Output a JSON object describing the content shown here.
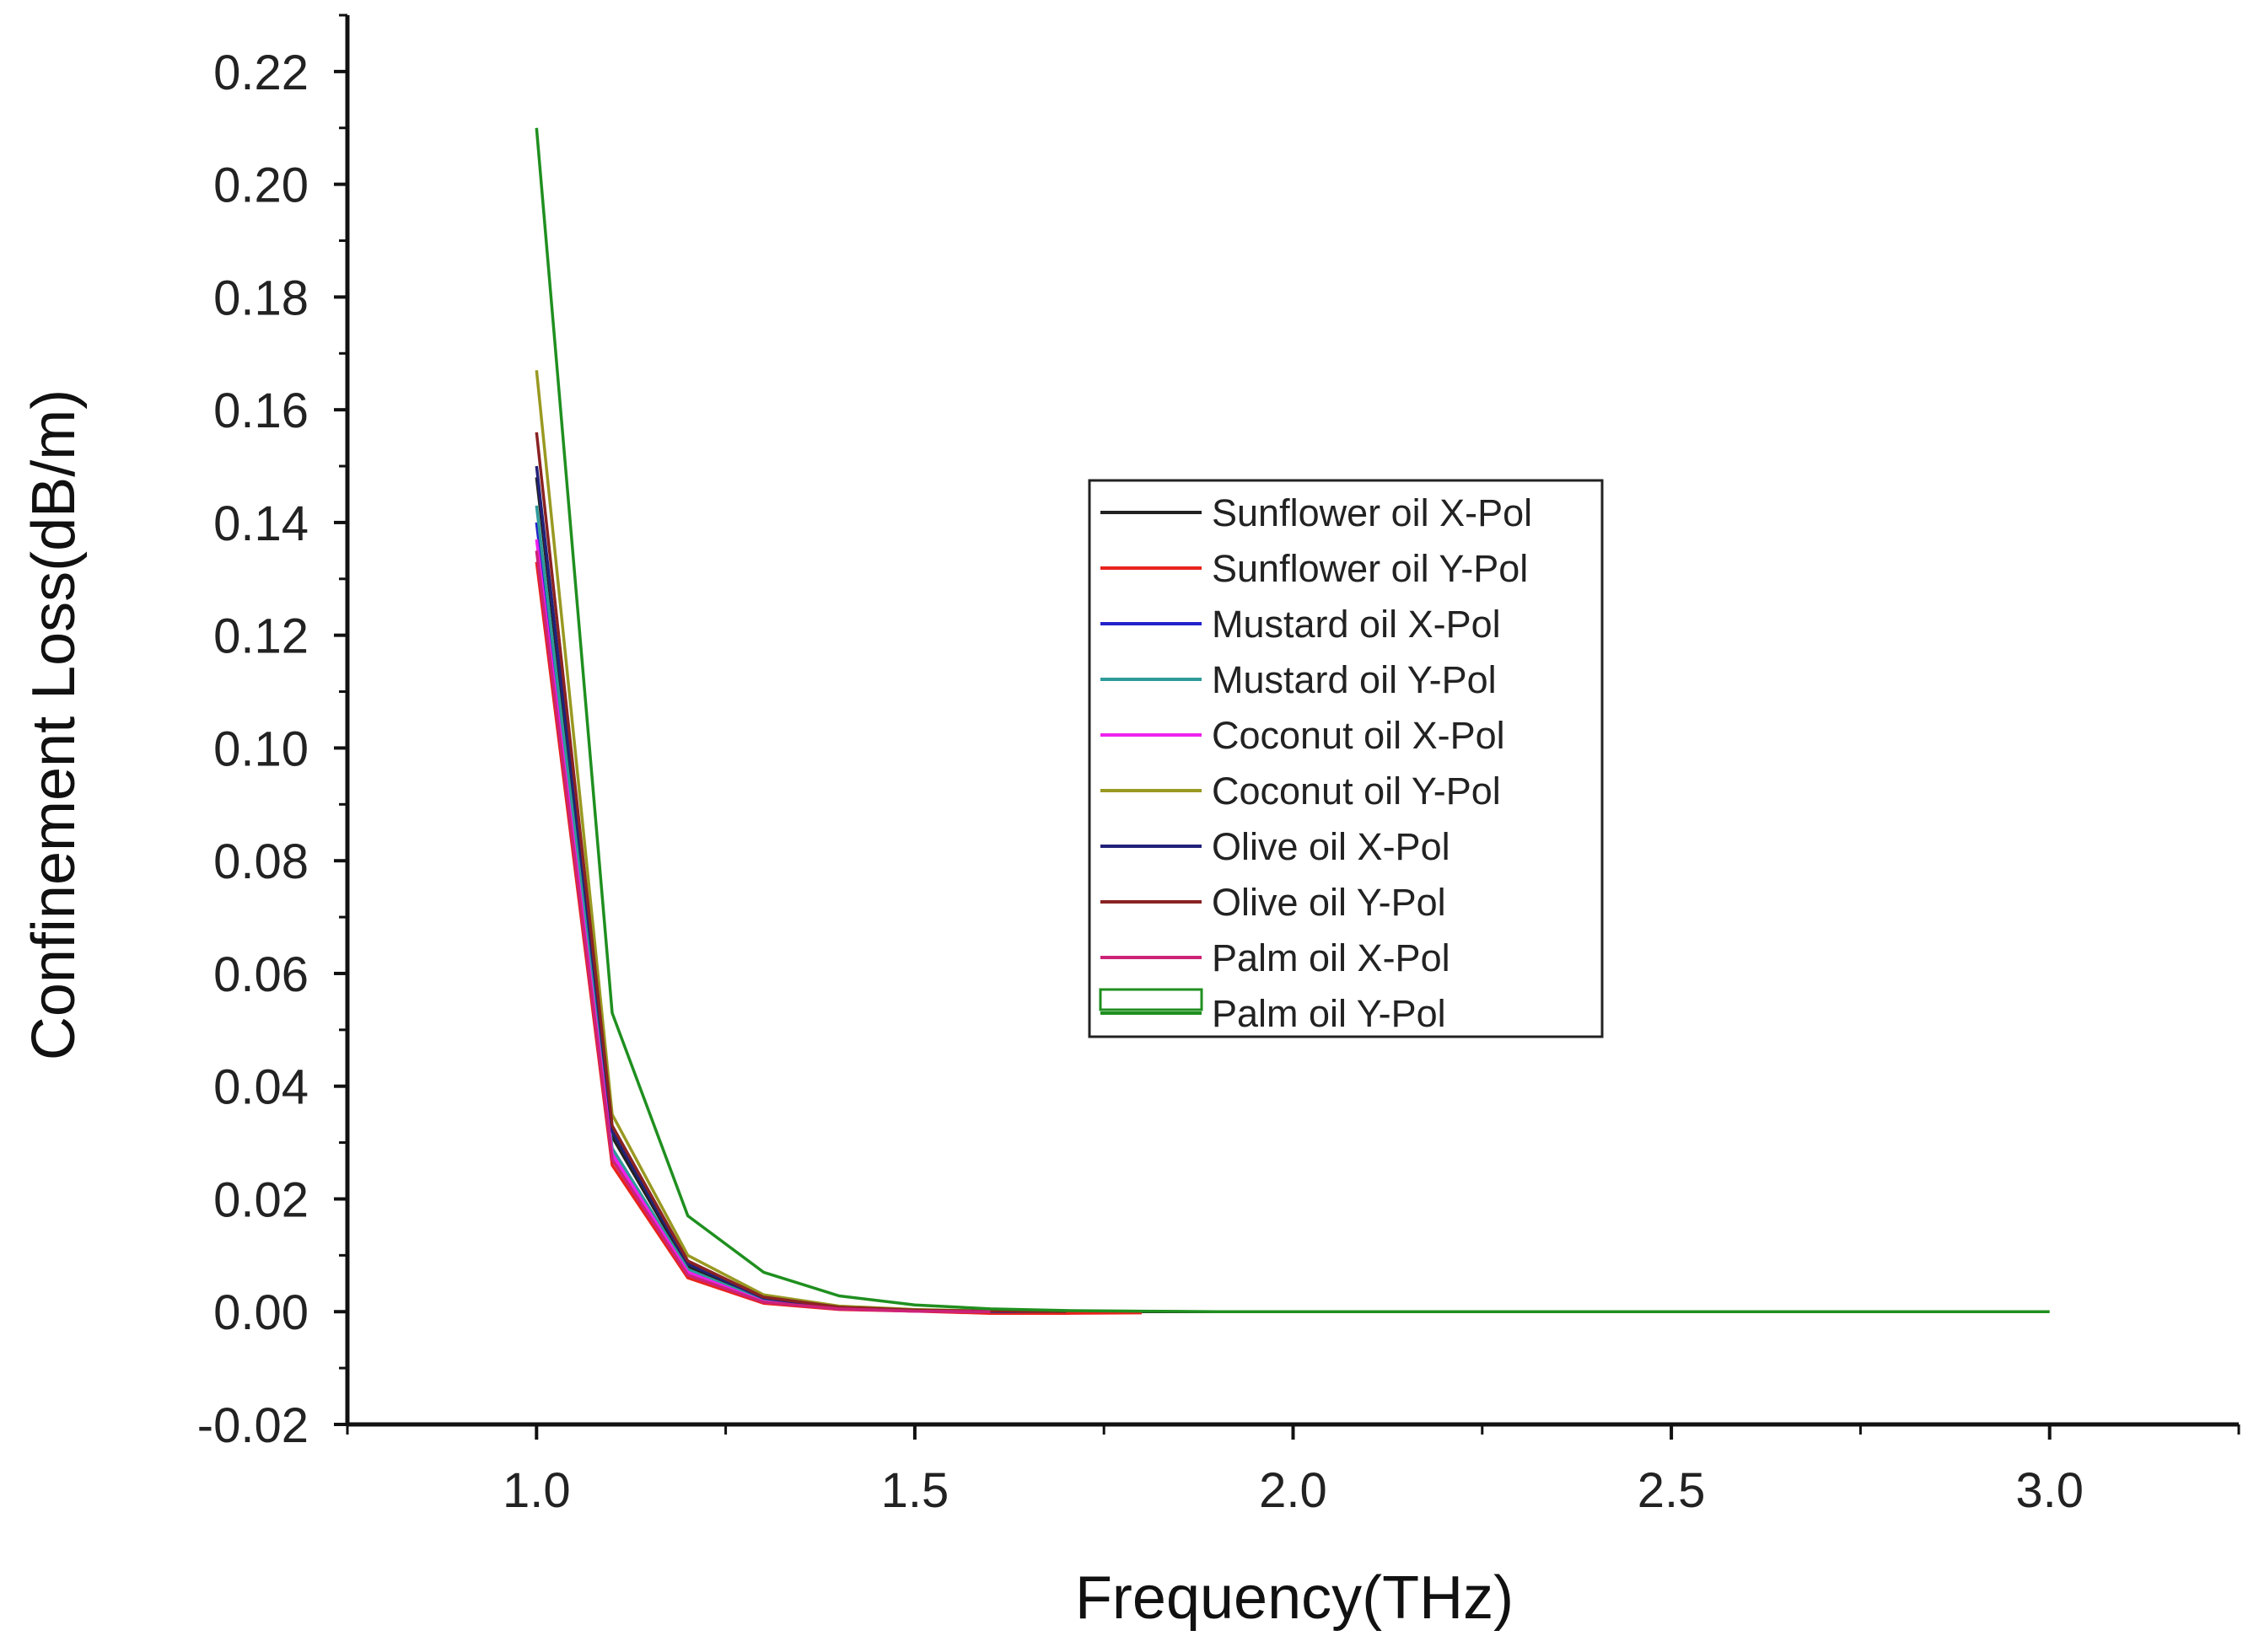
{
  "chart_data": {
    "type": "line",
    "title": "",
    "xlabel": "Frequency(THz)",
    "ylabel": "Confinement Loss(dB/m)",
    "xlim": [
      0.75,
      3.25
    ],
    "ylim": [
      -0.02,
      0.23
    ],
    "x_ticks": [
      1.0,
      1.5,
      2.0,
      2.5,
      3.0
    ],
    "x_tick_labels": [
      "1.0",
      "1.5",
      "2.0",
      "2.5",
      "3.0"
    ],
    "y_ticks": [
      -0.02,
      0.0,
      0.02,
      0.04,
      0.06,
      0.08,
      0.1,
      0.12,
      0.14,
      0.16,
      0.18,
      0.2,
      0.22
    ],
    "y_tick_labels": [
      "-0.02",
      "0.00",
      "0.02",
      "0.04",
      "0.06",
      "0.08",
      "0.10",
      "0.12",
      "0.14",
      "0.16",
      "0.18",
      "0.20",
      "0.22"
    ],
    "grid": false,
    "legend_position": "center-right",
    "series": [
      {
        "name": "Sunflower oil X-Pol",
        "color": "#222222",
        "x": [
          1.0,
          1.1,
          1.2,
          1.3,
          1.4,
          1.5,
          1.6,
          1.7,
          1.8,
          1.9
        ],
        "y": [
          0.148,
          0.031,
          0.008,
          0.002,
          0.0007,
          0.0003,
          0.0001,
          0.0,
          0.0,
          0.0
        ]
      },
      {
        "name": "Sunflower oil Y-Pol",
        "color": "#e8231c",
        "x": [
          1.0,
          1.1,
          1.2,
          1.3,
          1.4,
          1.5,
          1.6,
          1.7,
          1.8
        ],
        "y": [
          0.133,
          0.026,
          0.006,
          0.0015,
          0.0004,
          0.0001,
          -0.0003,
          -0.0003,
          -0.0002
        ]
      },
      {
        "name": "Mustard oil X-Pol",
        "color": "#2222cc",
        "x": [
          1.0,
          1.1,
          1.2,
          1.3,
          1.4,
          1.5,
          1.6,
          1.7
        ],
        "y": [
          0.14,
          0.028,
          0.007,
          0.0018,
          0.0005,
          0.0002,
          0.0,
          0.0
        ]
      },
      {
        "name": "Mustard oil Y-Pol",
        "color": "#2e9a9a",
        "x": [
          1.0,
          1.1,
          1.2,
          1.3,
          1.4,
          1.5,
          1.6
        ],
        "y": [
          0.143,
          0.029,
          0.0075,
          0.002,
          0.0006,
          0.0002,
          0.0
        ]
      },
      {
        "name": "Coconut oil X-Pol",
        "color": "#ee22ee",
        "x": [
          1.0,
          1.1,
          1.2,
          1.3,
          1.4,
          1.5,
          1.6
        ],
        "y": [
          0.137,
          0.028,
          0.007,
          0.0018,
          0.0005,
          0.0001,
          0.0
        ]
      },
      {
        "name": "Coconut oil Y-Pol",
        "color": "#999922",
        "x": [
          1.0,
          1.1,
          1.2,
          1.3,
          1.4,
          1.5,
          1.6,
          1.7
        ],
        "y": [
          0.167,
          0.035,
          0.01,
          0.003,
          0.001,
          0.0004,
          0.0001,
          0.0
        ]
      },
      {
        "name": "Olive oil X-Pol",
        "color": "#22227a",
        "x": [
          1.0,
          1.1,
          1.2,
          1.3,
          1.4,
          1.5,
          1.6
        ],
        "y": [
          0.15,
          0.032,
          0.0085,
          0.0024,
          0.0007,
          0.0002,
          0.0
        ]
      },
      {
        "name": "Olive oil Y-Pol",
        "color": "#8a2222",
        "x": [
          1.0,
          1.1,
          1.2,
          1.3,
          1.4,
          1.5,
          1.6,
          1.7
        ],
        "y": [
          0.156,
          0.033,
          0.009,
          0.0026,
          0.0008,
          0.0003,
          0.0001,
          0.0
        ]
      },
      {
        "name": "Palm oil X-Pol",
        "color": "#cc2277",
        "x": [
          1.0,
          1.1,
          1.2,
          1.3,
          1.4,
          1.5,
          1.6
        ],
        "y": [
          0.135,
          0.027,
          0.0065,
          0.0017,
          0.0005,
          0.0001,
          0.0
        ]
      },
      {
        "name": "Palm oil Y-Pol",
        "color": "#1f8f1f",
        "x": [
          1.0,
          1.1,
          1.2,
          1.3,
          1.4,
          1.5,
          1.6,
          1.7,
          1.8,
          1.9,
          2.0,
          2.5,
          3.0
        ],
        "y": [
          0.21,
          0.053,
          0.017,
          0.007,
          0.0028,
          0.0012,
          0.0005,
          0.0002,
          0.0001,
          0.0,
          0.0,
          0.0,
          0.0
        ]
      }
    ]
  }
}
